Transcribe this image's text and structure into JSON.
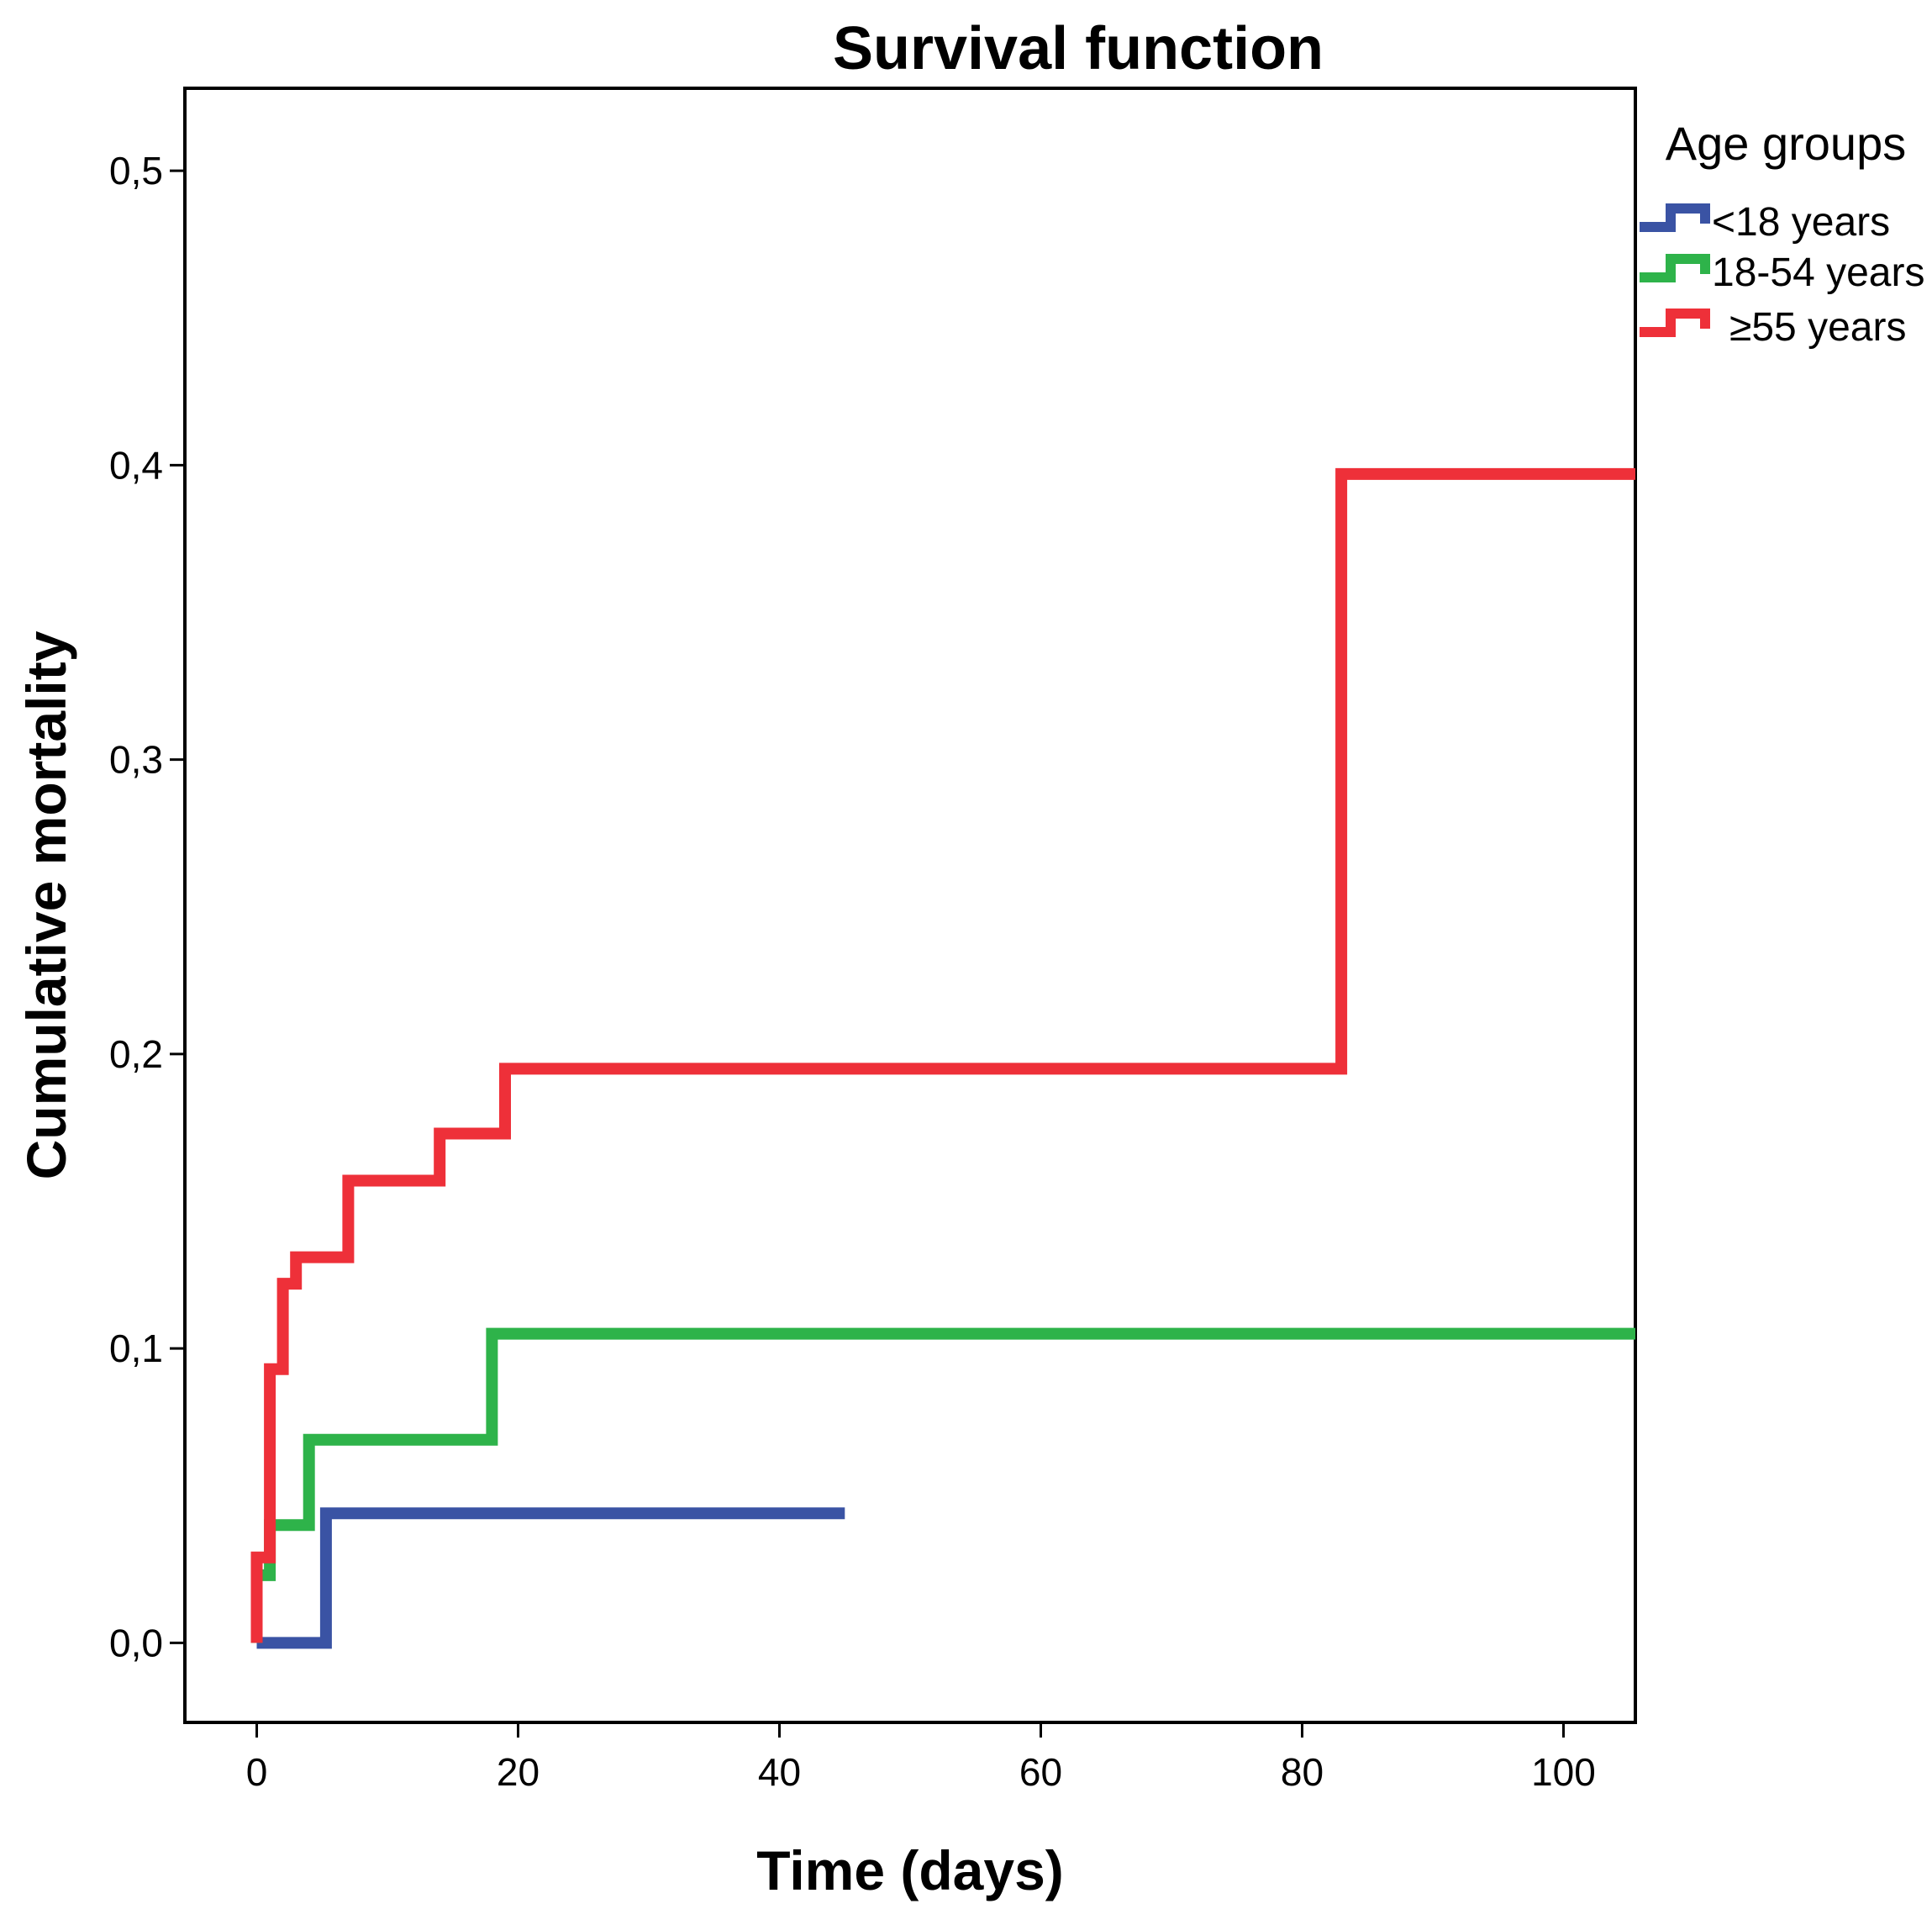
{
  "chart_data": {
    "type": "line",
    "subtype": "step",
    "title": "Survival function",
    "xlabel": "Time (days)",
    "ylabel": "Cumulative mortality",
    "xlim": [
      -5.5,
      105.5
    ],
    "ylim": [
      -0.027,
      0.528
    ],
    "x_ticks": [
      0,
      20,
      40,
      60,
      80,
      100
    ],
    "x_tick_labels": [
      "0",
      "20",
      "40",
      "60",
      "80",
      "100"
    ],
    "y_ticks": [
      0.0,
      0.1,
      0.2,
      0.3,
      0.4,
      0.5
    ],
    "y_tick_labels": [
      "0,0",
      "0,1",
      "0,2",
      "0,3",
      "0,4",
      "0,5"
    ],
    "grid": false,
    "legend": {
      "title": "Age groups",
      "position": "right-top"
    },
    "series": [
      {
        "name": "<18 years",
        "color": "#3a53a4",
        "points": [
          [
            0,
            0.0
          ],
          [
            5.3,
            0.0
          ],
          [
            5.3,
            0.044
          ],
          [
            45,
            0.044
          ]
        ]
      },
      {
        "name": "18-54 years",
        "color": "#2eb34a",
        "points": [
          [
            0,
            0.0
          ],
          [
            0,
            0.023
          ],
          [
            1,
            0.023
          ],
          [
            1,
            0.04
          ],
          [
            4,
            0.04
          ],
          [
            4,
            0.069
          ],
          [
            18,
            0.069
          ],
          [
            18,
            0.105
          ],
          [
            105.5,
            0.105
          ]
        ]
      },
      {
        "name": "≥55 years",
        "color": "#ee3039",
        "points": [
          [
            0,
            0.0
          ],
          [
            0,
            0.029
          ],
          [
            1,
            0.029
          ],
          [
            1,
            0.093
          ],
          [
            2,
            0.093
          ],
          [
            2,
            0.122
          ],
          [
            3,
            0.122
          ],
          [
            3,
            0.131
          ],
          [
            7,
            0.131
          ],
          [
            7,
            0.157
          ],
          [
            14,
            0.157
          ],
          [
            14,
            0.173
          ],
          [
            19,
            0.173
          ],
          [
            19,
            0.195
          ],
          [
            83,
            0.195
          ],
          [
            83,
            0.397
          ],
          [
            105.5,
            0.397
          ]
        ]
      }
    ]
  }
}
